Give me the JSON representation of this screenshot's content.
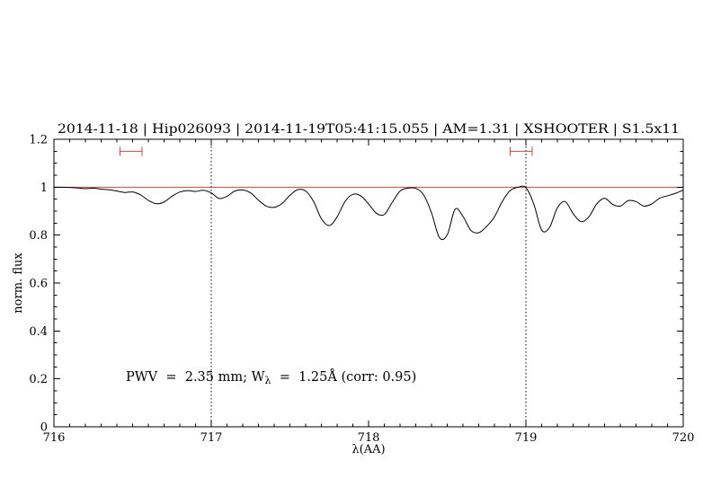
{
  "chart_data": {
    "type": "line",
    "title": "2014-11-18 | Hip026093 | 2014-11-19T05:41:15.055 | AM=1.31 | XSHOOTER | S1.5x11",
    "title_color": "#0000e0",
    "xlabel": "λ(AA)",
    "ylabel": "norm. flux",
    "xlim": [
      716,
      720
    ],
    "ylim": [
      0,
      1.2
    ],
    "x_ticks": [
      716,
      717,
      718,
      719,
      720
    ],
    "x_tick_labels": [
      "716",
      "717",
      "718",
      "719",
      "720"
    ],
    "y_ticks": [
      0,
      0.2,
      0.4,
      0.6,
      0.8,
      1,
      1.2
    ],
    "y_tick_labels": [
      "0",
      "0.2",
      "0.4",
      "0.6",
      "0.8",
      "1",
      "1.2"
    ],
    "x_minor_step": 0.1,
    "y_minor_step": 0.05,
    "grid": false,
    "legend": "none",
    "series": [
      {
        "name": "normalized-telluric-spectrum",
        "color": "#000000",
        "x_start": 716.0,
        "x_step": 0.05,
        "y": [
          1.0,
          1.0,
          0.999,
          0.997,
          0.994,
          0.996,
          0.992,
          0.989,
          0.984,
          0.978,
          0.98,
          0.968,
          0.945,
          0.931,
          0.938,
          0.962,
          0.98,
          0.986,
          0.982,
          0.987,
          0.976,
          0.953,
          0.962,
          0.984,
          0.988,
          0.976,
          0.946,
          0.921,
          0.916,
          0.932,
          0.966,
          0.99,
          0.984,
          0.941,
          0.868,
          0.84,
          0.876,
          0.94,
          0.97,
          0.964,
          0.93,
          0.891,
          0.886,
          0.936,
          0.984,
          0.996,
          0.995,
          0.968,
          0.893,
          0.79,
          0.801,
          0.908,
          0.878,
          0.82,
          0.81,
          0.836,
          0.876,
          0.941,
          0.986,
          1.0,
          0.998,
          0.93,
          0.821,
          0.832,
          0.914,
          0.94,
          0.89,
          0.856,
          0.876,
          0.93,
          0.954,
          0.929,
          0.921,
          0.944,
          0.94,
          0.921,
          0.93,
          0.954,
          0.964,
          0.974,
          0.988
        ]
      }
    ],
    "continuum_line": {
      "y": 1.0,
      "color": "#cc4444"
    },
    "vertical_dotted_lines": [
      717,
      719
    ],
    "range_markers": [
      {
        "x1": 716.42,
        "x2": 716.56,
        "y": 1.15,
        "color": "#cc4444"
      },
      {
        "x1": 718.9,
        "x2": 719.04,
        "y": 1.15,
        "color": "#cc4444"
      }
    ]
  },
  "annotation": {
    "prefix": "PWV  =  2.35 mm; W",
    "subscript": "λ",
    "suffix": "  =  1.25Å (corr: 0.95)",
    "color": "#0000e0"
  }
}
